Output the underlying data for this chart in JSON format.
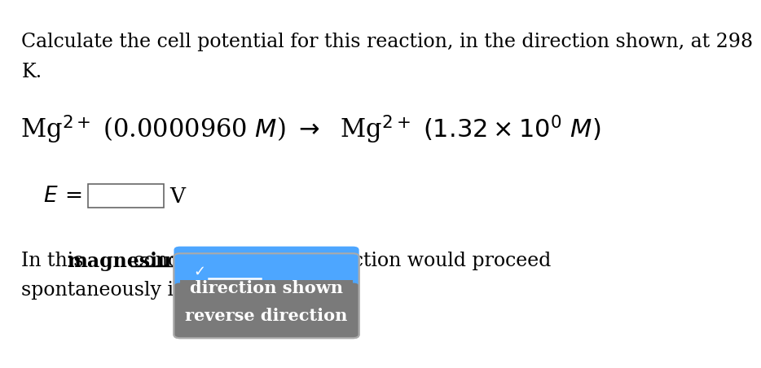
{
  "bg_color": "#ffffff",
  "title_line1": "Calculate the cell potential for this reaction, in the direction shown, at 298",
  "title_line2": "K.",
  "text_color": "#000000",
  "font_size_title": 17,
  "font_size_eq": 22,
  "font_size_bottom": 17,
  "font_size_dropdown": 15,
  "checkmark": "✓",
  "option1": "direction shown",
  "option2": "reverse direction",
  "dropdown_blue_color": "#4da6ff",
  "dropdown_gray_color": "#7a7a7a"
}
